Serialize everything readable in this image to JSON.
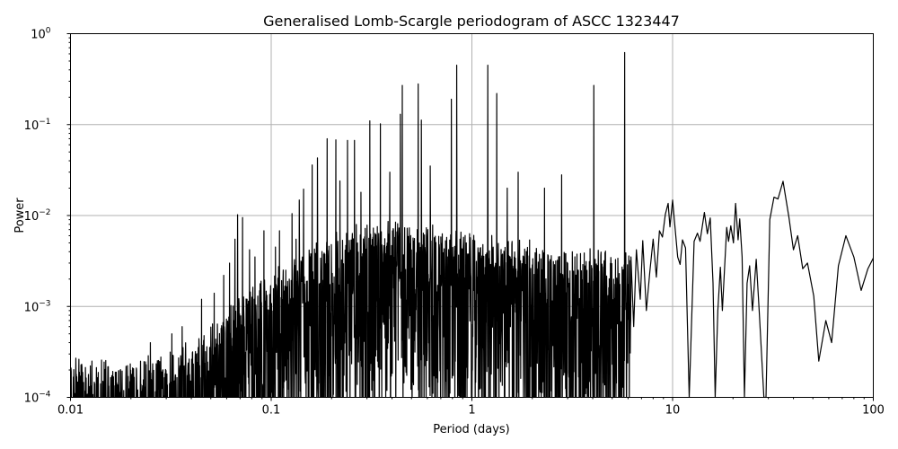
{
  "chart_data": {
    "type": "line",
    "title": "Generalised Lomb-Scargle periodogram of ASCC 1323447",
    "xlabel": "Period (days)",
    "ylabel": "Power",
    "xscale": "log",
    "yscale": "log",
    "xlim": [
      0.01,
      100
    ],
    "ylim": [
      0.0001,
      1
    ],
    "grid": true,
    "legend": null,
    "line_color": "#000000",
    "grid_color": "#b0b0b0",
    "x_ticks": [
      {
        "value": 0.01,
        "label": "0.01"
      },
      {
        "value": 0.1,
        "label": "0.1"
      },
      {
        "value": 1,
        "label": "1"
      },
      {
        "value": 10,
        "label": "10"
      },
      {
        "value": 100,
        "label": "100"
      }
    ],
    "y_ticks": [
      {
        "value": 0.0001,
        "base": "10",
        "exp": "−4"
      },
      {
        "value": 0.001,
        "base": "10",
        "exp": "−3"
      },
      {
        "value": 0.01,
        "base": "10",
        "exp": "−2"
      },
      {
        "value": 0.1,
        "base": "10",
        "exp": "−1"
      },
      {
        "value": 1,
        "base": "10",
        "exp": "0"
      }
    ],
    "noise_envelope": [
      [
        0.01,
        0.00025
      ],
      [
        0.02,
        0.00025
      ],
      [
        0.03,
        0.0003
      ],
      [
        0.05,
        0.0006
      ],
      [
        0.07,
        0.0012
      ],
      [
        0.1,
        0.0022
      ],
      [
        0.15,
        0.004
      ],
      [
        0.2,
        0.006
      ],
      [
        0.3,
        0.008
      ],
      [
        0.5,
        0.008
      ],
      [
        1.0,
        0.006
      ],
      [
        2.0,
        0.005
      ],
      [
        3.0,
        0.004
      ],
      [
        6.0,
        0.004
      ]
    ],
    "peaks": [
      [
        0.025,
        0.0004
      ],
      [
        0.032,
        0.0005
      ],
      [
        0.036,
        0.0006
      ],
      [
        0.045,
        0.0012
      ],
      [
        0.052,
        0.0014
      ],
      [
        0.058,
        0.0022
      ],
      [
        0.062,
        0.003
      ],
      [
        0.066,
        0.0055
      ],
      [
        0.068,
        0.0102
      ],
      [
        0.072,
        0.0095
      ],
      [
        0.078,
        0.0042
      ],
      [
        0.083,
        0.0035
      ],
      [
        0.092,
        0.0068
      ],
      [
        0.105,
        0.0045
      ],
      [
        0.11,
        0.0068
      ],
      [
        0.127,
        0.0105
      ],
      [
        0.133,
        0.0055
      ],
      [
        0.138,
        0.0148
      ],
      [
        0.145,
        0.0195
      ],
      [
        0.16,
        0.036
      ],
      [
        0.17,
        0.043
      ],
      [
        0.19,
        0.07
      ],
      [
        0.21,
        0.068
      ],
      [
        0.22,
        0.024
      ],
      [
        0.24,
        0.067
      ],
      [
        0.26,
        0.067
      ],
      [
        0.28,
        0.018
      ],
      [
        0.31,
        0.11
      ],
      [
        0.35,
        0.102
      ],
      [
        0.39,
        0.03
      ],
      [
        0.44,
        0.13
      ],
      [
        0.45,
        0.27
      ],
      [
        0.54,
        0.28
      ],
      [
        0.56,
        0.112
      ],
      [
        0.62,
        0.035
      ],
      [
        0.79,
        0.19
      ],
      [
        0.84,
        0.45
      ],
      [
        1.2,
        0.45
      ],
      [
        1.33,
        0.22
      ],
      [
        1.5,
        0.02
      ],
      [
        1.7,
        0.03
      ],
      [
        2.3,
        0.02
      ],
      [
        2.8,
        0.028
      ],
      [
        4.05,
        0.27
      ],
      [
        5.77,
        0.62
      ]
    ],
    "smooth_curve": [
      [
        6.2,
        0.0035
      ],
      [
        6.4,
        0.0006
      ],
      [
        6.6,
        0.0042
      ],
      [
        6.9,
        0.0012
      ],
      [
        7.1,
        0.0053
      ],
      [
        7.4,
        0.0009
      ],
      [
        7.7,
        0.0024
      ],
      [
        8.0,
        0.0055
      ],
      [
        8.3,
        0.0021
      ],
      [
        8.6,
        0.0068
      ],
      [
        8.9,
        0.0058
      ],
      [
        9.2,
        0.0103
      ],
      [
        9.5,
        0.0136
      ],
      [
        9.7,
        0.0075
      ],
      [
        10.0,
        0.0148
      ],
      [
        10.2,
        0.009
      ],
      [
        10.6,
        0.0035
      ],
      [
        10.9,
        0.0029
      ],
      [
        11.2,
        0.0054
      ],
      [
        11.6,
        0.0044
      ],
      [
        12.1,
        0.0001
      ],
      [
        12.8,
        0.0052
      ],
      [
        13.3,
        0.0064
      ],
      [
        13.7,
        0.0052
      ],
      [
        14.4,
        0.0108
      ],
      [
        14.9,
        0.0063
      ],
      [
        15.4,
        0.0094
      ],
      [
        15.9,
        0.0018
      ],
      [
        16.3,
        0.0001
      ],
      [
        16.8,
        0.0009
      ],
      [
        17.3,
        0.0027
      ],
      [
        17.7,
        0.0009
      ],
      [
        18.6,
        0.0074
      ],
      [
        19.0,
        0.0052
      ],
      [
        19.5,
        0.0077
      ],
      [
        20.1,
        0.005
      ],
      [
        20.6,
        0.0136
      ],
      [
        21.2,
        0.0054
      ],
      [
        21.6,
        0.0092
      ],
      [
        22.2,
        0.0035
      ],
      [
        22.8,
        0.0001
      ],
      [
        23.5,
        0.0018
      ],
      [
        24.2,
        0.0028
      ],
      [
        25.0,
        0.0009
      ],
      [
        26.1,
        0.0033
      ],
      [
        27.0,
        0.0009
      ],
      [
        28.5,
        0.0001
      ],
      [
        29.2,
        0.0001
      ],
      [
        30.5,
        0.009
      ],
      [
        32.0,
        0.0159
      ],
      [
        33.5,
        0.0152
      ],
      [
        35.5,
        0.0238
      ],
      [
        38.0,
        0.0095
      ],
      [
        40.0,
        0.0042
      ],
      [
        42.0,
        0.006
      ],
      [
        44.5,
        0.0026
      ],
      [
        47.0,
        0.003
      ],
      [
        50.5,
        0.0013
      ],
      [
        53.5,
        0.00025
      ],
      [
        58.0,
        0.0007
      ],
      [
        62.0,
        0.0004
      ],
      [
        67.0,
        0.0028
      ],
      [
        73.0,
        0.006
      ],
      [
        80.0,
        0.0035
      ],
      [
        87.0,
        0.0015
      ],
      [
        94.0,
        0.0026
      ],
      [
        100.0,
        0.0034
      ]
    ],
    "seed": 1323447
  }
}
